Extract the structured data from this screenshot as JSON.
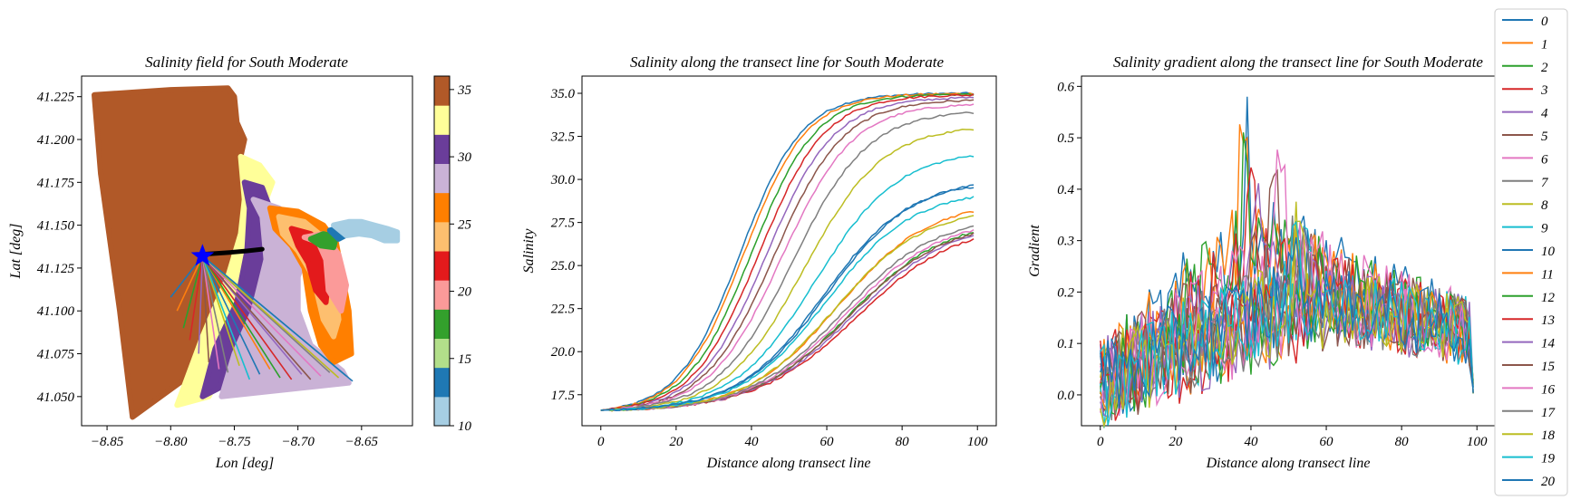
{
  "figure": {
    "legend_labels": [
      "0",
      "1",
      "2",
      "3",
      "4",
      "5",
      "6",
      "7",
      "8",
      "9",
      "10",
      "11",
      "12",
      "13",
      "14",
      "15",
      "16",
      "17",
      "18",
      "19",
      "20"
    ],
    "series_colors": [
      "#1f77b4",
      "#ff7f0e",
      "#2ca02c",
      "#d62728",
      "#9467bd",
      "#8c564b",
      "#e377c2",
      "#7f7f7f",
      "#bcbd22",
      "#17becf",
      "#1f77b4",
      "#ff7f0e",
      "#2ca02c",
      "#d62728",
      "#9467bd",
      "#8c564b",
      "#e377c2",
      "#7f7f7f",
      "#bcbd22",
      "#17becf",
      "#1f77b4"
    ],
    "legend_position": "right, outside axes"
  },
  "chart_data": [
    {
      "type": "scatter",
      "title": "Salinity field for South Moderate",
      "xlabel": "Lon [deg]",
      "ylabel": "Lat [deg]",
      "xlim": [
        -8.87,
        -8.61
      ],
      "ylim": [
        41.033,
        41.237
      ],
      "x_ticks": [
        -8.85,
        -8.8,
        -8.75,
        -8.7,
        -8.65
      ],
      "x_tick_labels": [
        "−8.85",
        "−8.80",
        "−8.75",
        "−8.70",
        "−8.65"
      ],
      "y_ticks": [
        41.05,
        41.075,
        41.1,
        41.125,
        41.15,
        41.175,
        41.2,
        41.225
      ],
      "y_tick_labels": [
        "41.050",
        "41.075",
        "41.100",
        "41.125",
        "41.150",
        "41.175",
        "41.200",
        "41.225"
      ],
      "colorbar": {
        "range": [
          10,
          36
        ],
        "tick_values": [
          10,
          15,
          20,
          25,
          30,
          35
        ],
        "tick_labels": [
          "10",
          "15",
          "20",
          "25",
          "30",
          "35"
        ],
        "colors": [
          "#a6cee3",
          "#1f78b4",
          "#b2df8a",
          "#33a02c",
          "#fb9a99",
          "#e31a1c",
          "#fdbf6f",
          "#ff7f00",
          "#cab2d6",
          "#6a3d9a",
          "#ffff99",
          "#b15928"
        ]
      },
      "field_bands": [
        {
          "salinity": 35.0,
          "color": "#b15928",
          "polygon": [
            [
              -8.86,
              41.226
            ],
            [
              -8.8,
              41.229
            ],
            [
              -8.755,
              41.23
            ],
            [
              -8.75,
              41.225
            ],
            [
              -8.748,
              41.21
            ],
            [
              -8.742,
              41.2
            ],
            [
              -8.745,
              41.19
            ],
            [
              -8.737,
              41.18
            ],
            [
              -8.728,
              41.17
            ],
            [
              -8.735,
              41.16
            ],
            [
              -8.733,
              41.145
            ],
            [
              -8.745,
              41.13
            ],
            [
              -8.78,
              41.065
            ],
            [
              -8.83,
              41.038
            ],
            [
              -8.84,
              41.1
            ],
            [
              -8.855,
              41.18
            ]
          ]
        },
        {
          "salinity": 33.5,
          "color": "#ffff99",
          "polygon": [
            [
              -8.745,
              41.19
            ],
            [
              -8.73,
              41.185
            ],
            [
              -8.72,
              41.175
            ],
            [
              -8.725,
              41.165
            ],
            [
              -8.72,
              41.15
            ],
            [
              -8.718,
              41.125
            ],
            [
              -8.735,
              41.1
            ],
            [
              -8.76,
              41.065
            ],
            [
              -8.77,
              41.05
            ],
            [
              -8.795,
              41.045
            ],
            [
              -8.775,
              41.085
            ],
            [
              -8.755,
              41.12
            ],
            [
              -8.745,
              41.145
            ],
            [
              -8.742,
              41.165
            ]
          ]
        },
        {
          "salinity": 31.0,
          "color": "#6a3d9a",
          "polygon": [
            [
              -8.742,
              41.175
            ],
            [
              -8.728,
              41.172
            ],
            [
              -8.722,
              41.16
            ],
            [
              -8.72,
              41.14
            ],
            [
              -8.722,
              41.115
            ],
            [
              -8.74,
              41.09
            ],
            [
              -8.755,
              41.07
            ],
            [
              -8.762,
              41.055
            ],
            [
              -8.775,
              41.05
            ],
            [
              -8.765,
              41.078
            ],
            [
              -8.748,
              41.105
            ],
            [
              -8.74,
              41.135
            ],
            [
              -8.738,
              41.16
            ]
          ]
        },
        {
          "salinity": 29.0,
          "color": "#cab2d6",
          "polygon": [
            [
              -8.735,
              41.165
            ],
            [
              -8.715,
              41.16
            ],
            [
              -8.7,
              41.152
            ],
            [
              -8.69,
              41.14
            ],
            [
              -8.7,
              41.12
            ],
            [
              -8.7,
              41.1
            ],
            [
              -8.69,
              41.08
            ],
            [
              -8.665,
              41.065
            ],
            [
              -8.66,
              41.058
            ],
            [
              -8.76,
              41.05
            ],
            [
              -8.75,
              41.075
            ],
            [
              -8.735,
              41.1
            ],
            [
              -8.725,
              41.13
            ],
            [
              -8.728,
              41.155
            ]
          ]
        },
        {
          "salinity": 26.5,
          "color": "#ff7f00",
          "polygon": [
            [
              -8.722,
              41.16
            ],
            [
              -8.7,
              41.158
            ],
            [
              -8.68,
              41.15
            ],
            [
              -8.67,
              41.14
            ],
            [
              -8.66,
              41.1
            ],
            [
              -8.658,
              41.075
            ],
            [
              -8.672,
              41.07
            ],
            [
              -8.682,
              41.08
            ],
            [
              -8.69,
              41.1
            ],
            [
              -8.695,
              41.125
            ],
            [
              -8.705,
              41.138
            ],
            [
              -8.718,
              41.148
            ]
          ]
        },
        {
          "salinity": 24.5,
          "color": "#fdbf6f",
          "polygon": [
            [
              -8.715,
              41.155
            ],
            [
              -8.695,
              41.152
            ],
            [
              -8.68,
              41.143
            ],
            [
              -8.672,
              41.12
            ],
            [
              -8.668,
              41.095
            ],
            [
              -8.672,
              41.085
            ],
            [
              -8.68,
              41.095
            ],
            [
              -8.688,
              41.12
            ],
            [
              -8.7,
              41.135
            ],
            [
              -8.712,
              41.145
            ]
          ]
        },
        {
          "salinity": 21.5,
          "color": "#e31a1c",
          "polygon": [
            [
              -8.705,
              41.148
            ],
            [
              -8.69,
              41.145
            ],
            [
              -8.68,
              41.138
            ],
            [
              -8.676,
              41.12
            ],
            [
              -8.678,
              41.105
            ],
            [
              -8.686,
              41.112
            ],
            [
              -8.692,
              41.128
            ],
            [
              -8.7,
              41.138
            ]
          ]
        },
        {
          "salinity": 19.0,
          "color": "#fb9a99",
          "polygon": [
            [
              -8.695,
              41.143
            ],
            [
              -8.684,
              41.14
            ],
            [
              -8.678,
              41.13
            ],
            [
              -8.676,
              41.112
            ],
            [
              -8.666,
              41.1
            ],
            [
              -8.662,
              41.115
            ],
            [
              -8.668,
              41.133
            ],
            [
              -8.68,
              41.145
            ]
          ]
        },
        {
          "salinity": 16.0,
          "color": "#33a02c",
          "polygon": [
            [
              -8.69,
              41.142
            ],
            [
              -8.68,
              41.145
            ],
            [
              -8.67,
              41.143
            ],
            [
              -8.672,
              41.137
            ],
            [
              -8.682,
              41.138
            ]
          ]
        },
        {
          "salinity": 13.5,
          "color": "#1f78b4",
          "polygon": [
            [
              -8.675,
              41.147
            ],
            [
              -8.665,
              41.149
            ],
            [
              -8.66,
              41.145
            ],
            [
              -8.668,
              41.142
            ]
          ]
        },
        {
          "salinity": 10.5,
          "color": "#a6cee3",
          "polygon": [
            [
              -8.672,
              41.15
            ],
            [
              -8.66,
              41.152
            ],
            [
              -8.65,
              41.152
            ],
            [
              -8.64,
              41.15
            ],
            [
              -8.63,
              41.148
            ],
            [
              -8.622,
              41.146
            ],
            [
              -8.622,
              41.141
            ],
            [
              -8.632,
              41.141
            ],
            [
              -8.642,
              41.144
            ],
            [
              -8.652,
              41.145
            ],
            [
              -8.662,
              41.144
            ]
          ]
        }
      ],
      "start_marker": {
        "lon": -8.775,
        "lat": 41.132,
        "color": "#0000ff"
      },
      "black_track": {
        "lon": [
          -8.775,
          -8.755,
          -8.74,
          -8.728
        ],
        "lat": [
          41.133,
          41.134,
          41.135,
          41.136
        ]
      },
      "transect_end_points": {
        "lon": [
          -8.8,
          -8.795,
          -8.79,
          -8.785,
          -8.778,
          -8.77,
          -8.762,
          -8.755,
          -8.746,
          -8.738,
          -8.73,
          -8.722,
          -8.714,
          -8.705,
          -8.697,
          -8.69,
          -8.682,
          -8.675,
          -8.668,
          -8.662,
          -8.657
        ],
        "lat": [
          41.108,
          41.1,
          41.09,
          41.083,
          41.075,
          41.07,
          41.066,
          41.064,
          41.068,
          41.06,
          41.063,
          41.066,
          41.061,
          41.06,
          41.063,
          41.06,
          41.062,
          41.064,
          41.061,
          41.062,
          41.059
        ]
      }
    },
    {
      "type": "line",
      "title": "Salinity along the transect line for South Moderate",
      "xlabel": "Distance along transect line",
      "ylabel": "Salinity",
      "xlim": [
        -5,
        105
      ],
      "ylim": [
        15.7,
        36.0
      ],
      "x_ticks": [
        0,
        20,
        40,
        60,
        80,
        100
      ],
      "y_ticks": [
        17.5,
        20.0,
        22.5,
        25.0,
        27.5,
        30.0,
        32.5,
        35.0
      ],
      "y_tick_labels": [
        "17.5",
        "20.0",
        "22.5",
        "25.0",
        "27.5",
        "30.0",
        "32.5",
        "35.0"
      ],
      "x": [
        0,
        100
      ],
      "series": [
        {
          "name": "0",
          "start": 16.6,
          "end": 35.0,
          "mid": 37
        },
        {
          "name": "1",
          "start": 16.6,
          "end": 34.98,
          "mid": 38
        },
        {
          "name": "2",
          "start": 16.6,
          "end": 34.95,
          "mid": 40
        },
        {
          "name": "3",
          "start": 16.6,
          "end": 34.9,
          "mid": 42
        },
        {
          "name": "4",
          "start": 16.6,
          "end": 34.75,
          "mid": 44
        },
        {
          "name": "5",
          "start": 16.6,
          "end": 34.6,
          "mid": 46
        },
        {
          "name": "6",
          "start": 16.6,
          "end": 34.35,
          "mid": 48
        },
        {
          "name": "7",
          "start": 16.6,
          "end": 33.9,
          "mid": 51
        },
        {
          "name": "8",
          "start": 16.6,
          "end": 32.95,
          "mid": 54
        },
        {
          "name": "9",
          "start": 16.6,
          "end": 31.4,
          "mid": 57
        },
        {
          "name": "10",
          "start": 16.6,
          "end": 29.7,
          "mid": 60
        },
        {
          "name": "11",
          "start": 16.6,
          "end": 28.2,
          "mid": 63
        },
        {
          "name": "12",
          "start": 16.6,
          "end": 27.0,
          "mid": 66
        },
        {
          "name": "13",
          "start": 16.6,
          "end": 26.6,
          "mid": 68
        },
        {
          "name": "14",
          "start": 16.6,
          "end": 26.8,
          "mid": 67
        },
        {
          "name": "15",
          "start": 16.6,
          "end": 26.9,
          "mid": 66
        },
        {
          "name": "16",
          "start": 16.6,
          "end": 27.1,
          "mid": 65
        },
        {
          "name": "17",
          "start": 16.6,
          "end": 27.3,
          "mid": 64
        },
        {
          "name": "18",
          "start": 16.6,
          "end": 27.9,
          "mid": 62
        },
        {
          "name": "19",
          "start": 16.6,
          "end": 29.0,
          "mid": 60
        },
        {
          "name": "20",
          "start": 16.6,
          "end": 29.6,
          "mid": 59
        }
      ]
    },
    {
      "type": "line",
      "title": "Salinity gradient along the transect line for South Moderate",
      "xlabel": "Distance along transect line",
      "ylabel": "Gradient",
      "xlim": [
        -5,
        105
      ],
      "ylim": [
        -0.06,
        0.62
      ],
      "x_ticks": [
        0,
        20,
        40,
        60,
        80,
        100
      ],
      "y_ticks": [
        0.0,
        0.1,
        0.2,
        0.3,
        0.4,
        0.5,
        0.6
      ],
      "y_tick_labels": [
        "0.0",
        "0.1",
        "0.2",
        "0.3",
        "0.4",
        "0.5",
        "0.6"
      ],
      "x": [
        0,
        100
      ],
      "series_peaks": [
        0.58,
        0.53,
        0.52,
        0.45,
        0.42,
        0.47,
        0.48,
        0.41,
        0.38,
        0.36,
        0.33,
        0.32,
        0.31,
        0.3,
        0.3,
        0.31,
        0.32,
        0.33,
        0.34,
        0.35,
        0.36
      ],
      "series_peak_x": [
        39,
        38,
        38,
        40,
        42,
        46,
        48,
        50,
        52,
        54,
        56,
        58,
        58,
        58,
        57,
        56,
        55,
        54,
        53,
        52,
        51
      ]
    }
  ]
}
